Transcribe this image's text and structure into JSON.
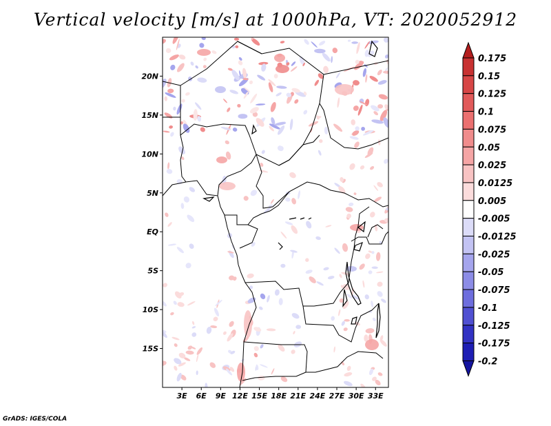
{
  "title": "Vertical velocity [m/s] at 1000hPa, VT: 2020052912",
  "credit": "GrADS: IGES/COLA",
  "map": {
    "lat_labels": [
      "20N",
      "15N",
      "10N",
      "5N",
      "EQ",
      "5S",
      "10S",
      "15S"
    ],
    "lat_values": [
      20,
      15,
      10,
      5,
      0,
      -5,
      -10,
      -15
    ],
    "lon_labels": [
      "3E",
      "6E",
      "9E",
      "12E",
      "15E",
      "18E",
      "21E",
      "24E",
      "27E",
      "30E",
      "33E"
    ],
    "lon_values": [
      3,
      6,
      9,
      12,
      15,
      18,
      21,
      24,
      27,
      30,
      33
    ],
    "lon_range": [
      0,
      35
    ],
    "lat_range": [
      -20,
      25
    ]
  },
  "colorbar": {
    "labels": [
      "0.175",
      "0.15",
      "0.125",
      "0.1",
      "0.075",
      "0.05",
      "0.025",
      "0.0125",
      "0.005",
      "-0.005",
      "-0.0125",
      "-0.025",
      "-0.05",
      "-0.075",
      "-0.1",
      "-0.125",
      "-0.175",
      "-0.2"
    ],
    "colors": [
      "#b41e1e",
      "#c83232",
      "#d74646",
      "#e15a5a",
      "#eb7070",
      "#f08c8c",
      "#f5a5a5",
      "#f8c3c3",
      "#fbdcdc",
      "#ffffff",
      "#dcdcf8",
      "#c3c3f3",
      "#a5a5ed",
      "#8c8ce6",
      "#6e6ede",
      "#5050d2",
      "#3232c3",
      "#1e1eb4",
      "#1414a0"
    ]
  }
}
